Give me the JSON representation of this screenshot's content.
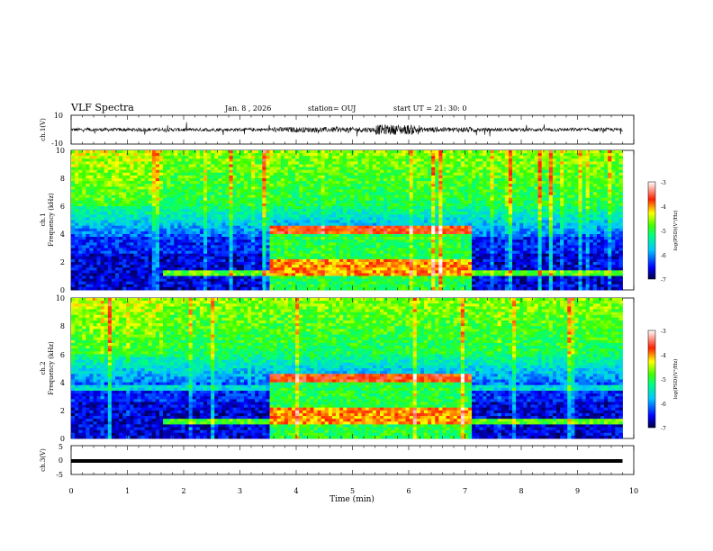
{
  "header": {
    "title": "VLF Spectra",
    "date": "Jan. 8 , 2026",
    "station": "station= OUJ",
    "start": "start UT =  21: 30: 0"
  },
  "chart_data": [
    {
      "type": "line",
      "panel": "ch1-waveform",
      "ylabel": "ch.1(V)",
      "ylim": [
        -10,
        10
      ],
      "yticks": [
        "10",
        "-10"
      ],
      "xlim": [
        0,
        10
      ],
      "description_values": "noisy waveform centered at 0 V, amplitude ~1-2 V with bursts near 5.5-6 min"
    },
    {
      "type": "heatmap",
      "panel": "ch1-spectrogram",
      "ylabel": [
        "ch.1",
        "Frequency  (kHz)"
      ],
      "ylim": [
        0,
        10
      ],
      "yticks": [
        "0",
        "2",
        "4",
        "6",
        "8",
        "10"
      ],
      "xlim": [
        0,
        10
      ],
      "data_end_min": 9.8,
      "segments_min": [
        0,
        1.65,
        3.55,
        7.15,
        9.8
      ],
      "colorbar": {
        "label": "log(PSD)(V²/Hz)",
        "range": [
          -7,
          -3
        ],
        "ticks": [
          "-3",
          "-4",
          "-5",
          "-6",
          "-7"
        ],
        "colors": [
          "#000080",
          "#0000ff",
          "#00ffff",
          "#00ff00",
          "#ffff00",
          "#ff0000",
          "#ffffff"
        ]
      }
    },
    {
      "type": "heatmap",
      "panel": "ch2-spectrogram",
      "ylabel": [
        "ch.2",
        "Frequency  (kHz)"
      ],
      "ylim": [
        0,
        10
      ],
      "yticks": [
        "0",
        "2",
        "4",
        "6",
        "8",
        "10"
      ],
      "xlim": [
        0,
        10
      ],
      "data_end_min": 9.8,
      "segments_min": [
        0,
        1.65,
        3.55,
        7.15,
        9.8
      ],
      "colorbar": {
        "label": "log(PSD)(V²/Hz)",
        "range": [
          -7,
          -3
        ],
        "ticks": [
          "-3",
          "-4",
          "-5",
          "-6",
          "-7"
        ]
      }
    },
    {
      "type": "line",
      "panel": "ch3-waveform",
      "ylabel": "ch.3(V)",
      "ylim": [
        -5,
        5
      ],
      "yticks": [
        "5",
        "0",
        "-5"
      ],
      "xlim": [
        0,
        10
      ],
      "level_v": -0.3
    }
  ],
  "xaxis": {
    "label": "Time  (min)",
    "ticks": [
      "0",
      "1",
      "2",
      "3",
      "4",
      "5",
      "6",
      "7",
      "8",
      "9",
      "10"
    ]
  }
}
